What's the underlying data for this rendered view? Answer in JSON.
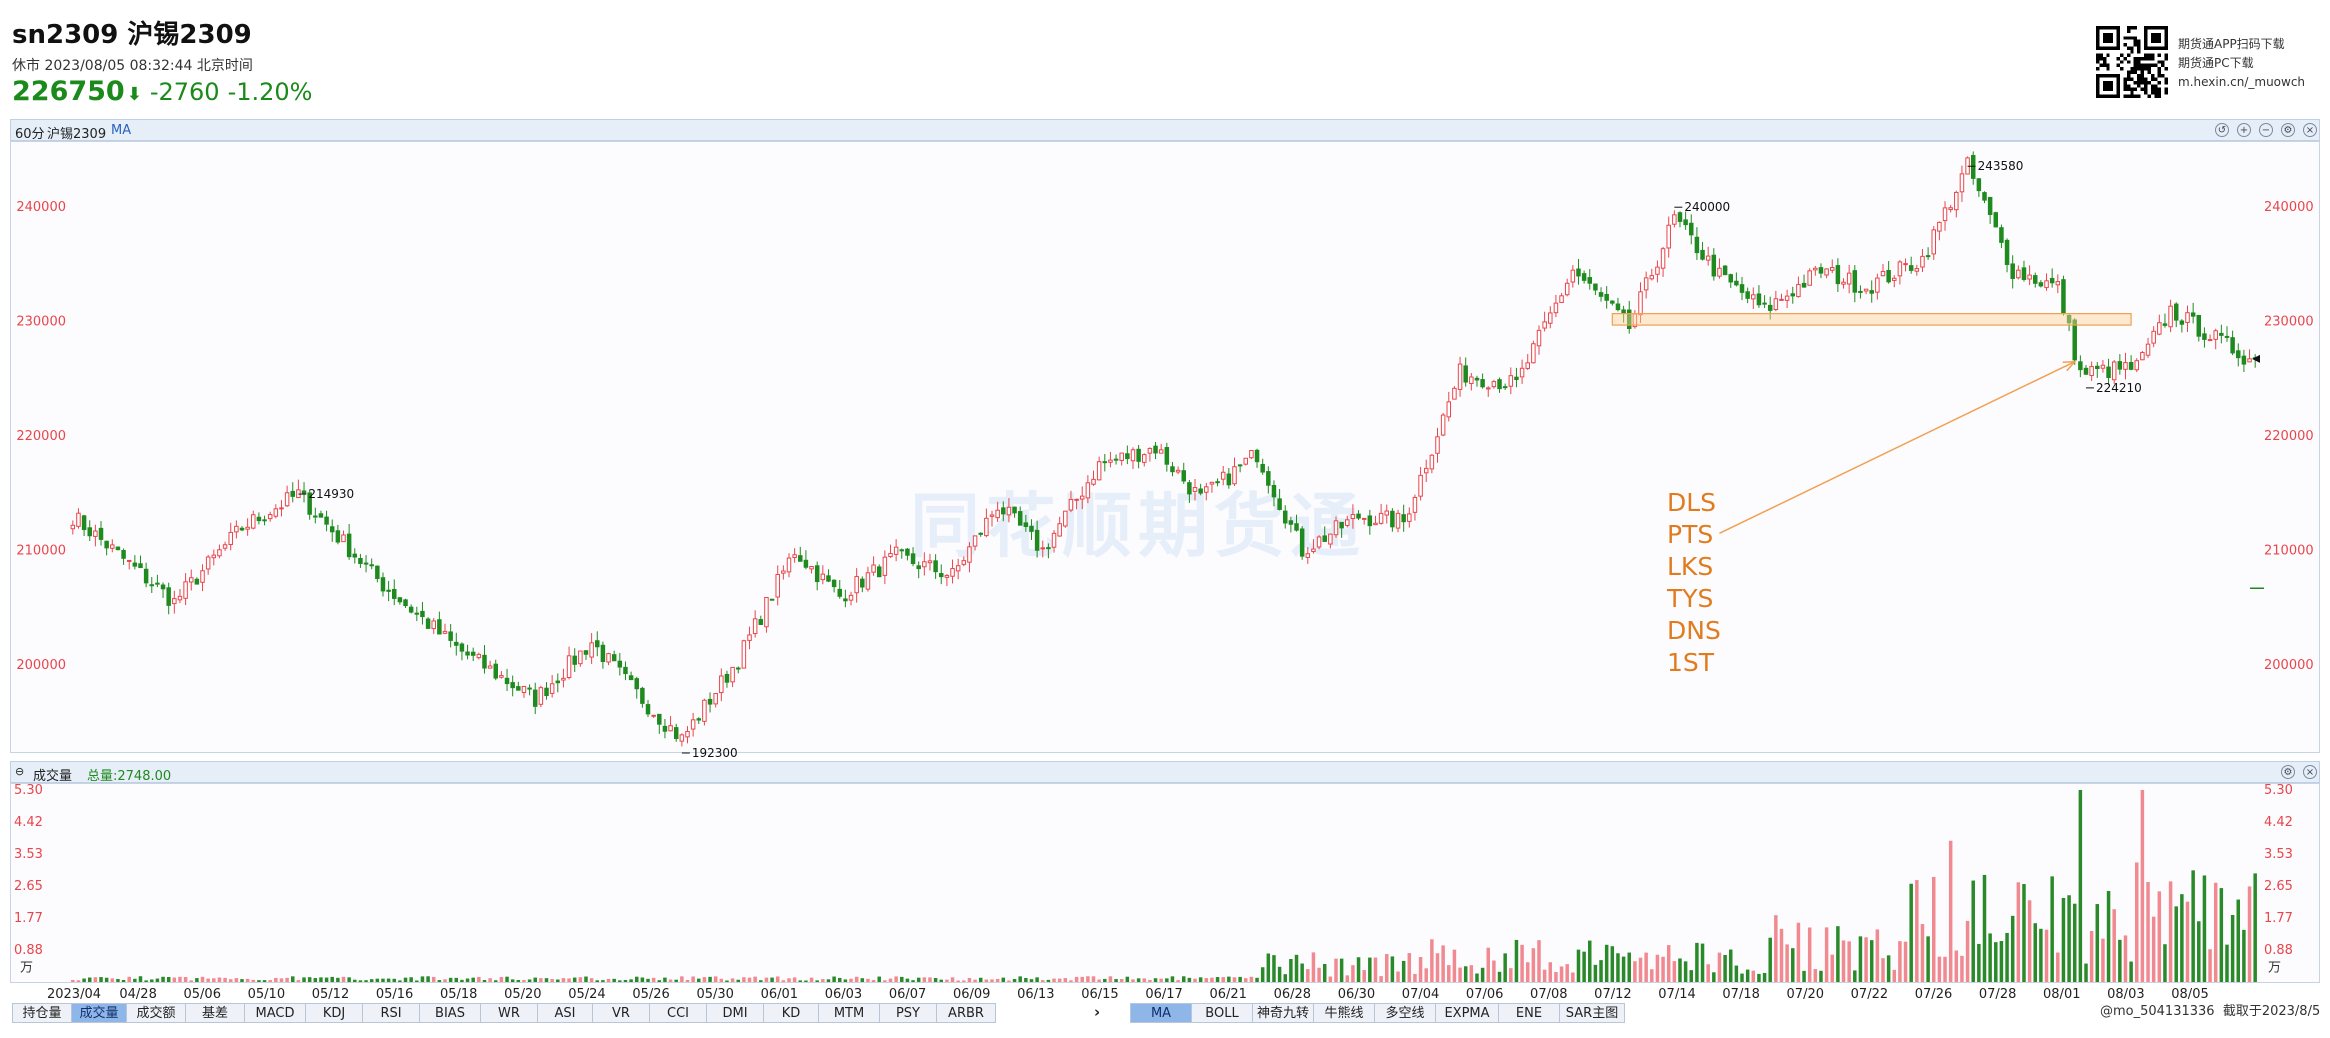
{
  "header": {
    "title": "sn2309 沪锡2309",
    "status": "休市  2023/08/05 08:32:44 北京时间",
    "price": "226750",
    "change": "-2760",
    "change_pct": "-1.20%"
  },
  "promo": {
    "line1": "期货通APP扫码下载",
    "line2": "期货通PC下载",
    "line3": "m.hexin.cn/_muowch"
  },
  "main_panel": {
    "period": "60分",
    "symbol": "沪锡2309",
    "indicator": "MA"
  },
  "volume_panel": {
    "label": "成交量",
    "total": "总量:2748.00"
  },
  "watermark": "同花顺期货通",
  "annotations": [
    "DLS",
    "PTS",
    "LKS",
    "TYS",
    "DNS",
    "1ST"
  ],
  "tabs": [
    "持仓量",
    "成交量",
    "成交额",
    "基差",
    "MACD",
    "KDJ",
    "RSI",
    "BIAS",
    "WR",
    "ASI",
    "VR",
    "CCI",
    "DMI",
    "KD",
    "MTM",
    "PSY",
    "ARBR"
  ],
  "active_tab": "成交量",
  "indicator_tabs": [
    "MA",
    "BOLL",
    "神奇九转",
    "牛熊线",
    "多空线",
    "EXPMA",
    "ENE",
    "SAR主图"
  ],
  "active_indicator": "MA",
  "footer": {
    "user": "@mo_504131336",
    "capture": "截取于2023/8/5"
  },
  "colors": {
    "up": "#e8464b",
    "down": "#1f8a1f",
    "accent": "#e07c1e",
    "volume_up": "#f08a90",
    "volume_down": "#2a8a2a"
  },
  "chart_data": {
    "type": "candlestick",
    "price_axis": {
      "ticks": [
        200000,
        210000,
        220000,
        230000,
        240000
      ],
      "labels": [
        "200000",
        "210000",
        "220000",
        "230000",
        "240000"
      ],
      "ylim": [
        193000,
        245000
      ]
    },
    "volume_axis": {
      "ticks": [
        0.88,
        1.77,
        2.65,
        3.53,
        4.42,
        5.3
      ],
      "labels": [
        "0.88",
        "1.77",
        "2.65",
        "3.53",
        "4.42",
        "5.30"
      ],
      "unit": "万",
      "ylim": [
        0,
        5.3
      ]
    },
    "x_ticks": [
      "2023/04",
      "04/28",
      "05/06",
      "05/10",
      "05/12",
      "05/16",
      "05/18",
      "05/20",
      "05/24",
      "05/26",
      "05/30",
      "06/01",
      "06/03",
      "06/07",
      "06/09",
      "06/13",
      "06/15",
      "06/17",
      "06/21",
      "06/28",
      "06/30",
      "07/04",
      "07/06",
      "07/08",
      "07/12",
      "07/14",
      "07/18",
      "07/20",
      "07/22",
      "07/26",
      "07/28",
      "08/01",
      "08/03",
      "08/05"
    ],
    "key_points": [
      {
        "i": 0,
        "close": 213000
      },
      {
        "i": 18,
        "close": 205500
      },
      {
        "i": 30,
        "close": 212000
      },
      {
        "i": 40,
        "close": 214930
      },
      {
        "i": 55,
        "close": 207000
      },
      {
        "i": 68,
        "close": 201500
      },
      {
        "i": 82,
        "close": 197000
      },
      {
        "i": 92,
        "close": 202000
      },
      {
        "i": 100,
        "close": 197500
      },
      {
        "i": 108,
        "close": 193500
      },
      {
        "i": 118,
        "close": 200500
      },
      {
        "i": 128,
        "close": 210000
      },
      {
        "i": 136,
        "close": 206000
      },
      {
        "i": 146,
        "close": 209500
      },
      {
        "i": 156,
        "close": 207800
      },
      {
        "i": 164,
        "close": 214000
      },
      {
        "i": 172,
        "close": 210000
      },
      {
        "i": 182,
        "close": 217500
      },
      {
        "i": 192,
        "close": 219000
      },
      {
        "i": 200,
        "close": 214500
      },
      {
        "i": 210,
        "close": 218500
      },
      {
        "i": 218,
        "close": 210000
      },
      {
        "i": 228,
        "close": 213000
      },
      {
        "i": 236,
        "close": 212500
      },
      {
        "i": 246,
        "close": 225500
      },
      {
        "i": 256,
        "close": 224500
      },
      {
        "i": 266,
        "close": 234500
      },
      {
        "i": 276,
        "close": 229500
      },
      {
        "i": 284,
        "close": 239000
      },
      {
        "i": 292,
        "close": 234000
      },
      {
        "i": 300,
        "close": 231000
      },
      {
        "i": 310,
        "close": 234500
      },
      {
        "i": 318,
        "close": 233000
      },
      {
        "i": 328,
        "close": 235500
      },
      {
        "i": 336,
        "close": 243580
      },
      {
        "i": 344,
        "close": 234500
      },
      {
        "i": 352,
        "close": 233000
      },
      {
        "i": 356,
        "close": 225500
      },
      {
        "i": 366,
        "close": 226000
      },
      {
        "i": 372,
        "close": 231000
      },
      {
        "i": 380,
        "close": 228500
      },
      {
        "i": 386,
        "close": 226750
      }
    ],
    "price_labels": [
      {
        "i": 40,
        "value": 214930,
        "text": "214930"
      },
      {
        "i": 108,
        "value": 192300,
        "text": "192300"
      },
      {
        "i": 284,
        "value": 240000,
        "text": "240000"
      },
      {
        "i": 336,
        "value": 243580,
        "text": "243580"
      },
      {
        "i": 357,
        "value": 224210,
        "text": "224210"
      }
    ],
    "support_band": {
      "from_i": 273,
      "to_i": 365,
      "low": 229700,
      "high": 230700
    },
    "arrow": {
      "from": {
        "i": 292,
        "price": 211500
      },
      "to": {
        "i": 355,
        "price": 226500
      }
    },
    "last_close": 226750,
    "ma_marker": 206700
  }
}
